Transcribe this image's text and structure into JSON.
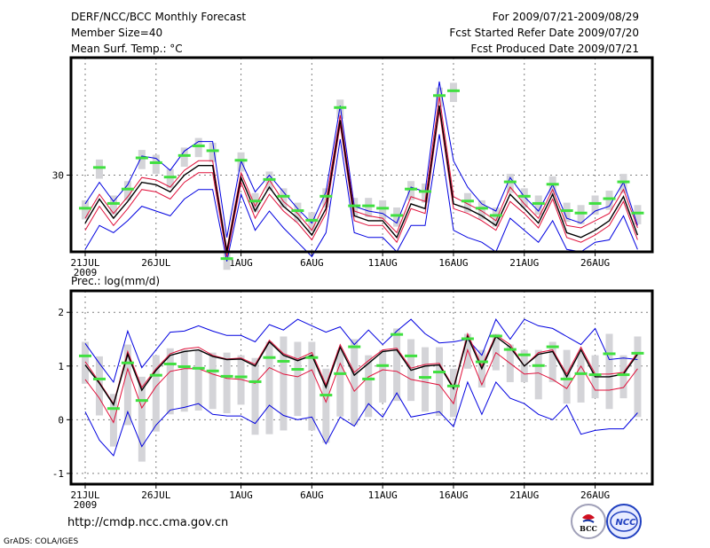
{
  "header": {
    "title": "DERF/NCC/BCC Monthly Forecast",
    "member_size": "Member Size=40",
    "variable_label": "Mean Surf. Temp.: °C",
    "period": "For 2009/07/21-2009/08/29",
    "start_date": "Fcst Started Refer Date 2009/07/20",
    "produced_date": "Fcst Produced Date 2009/07/21"
  },
  "footer": {
    "url": "http://cmdp.ncc.cma.gov.cn",
    "credit": "GrADS: COLA/IGES",
    "logo_left": "BCC",
    "logo_right": "NCC"
  },
  "colors": {
    "mean": "#000000",
    "spread": "#e0103a",
    "extreme": "#0000e0",
    "observed": "#40e040",
    "obs_box": "#d4d4d8",
    "grid": "#808080"
  },
  "chart_data": [
    {
      "type": "line",
      "title": "Mean Surf. Temp.: °C",
      "xlabel": "",
      "ylabel": "°C",
      "x_ticks": [
        "21JUL",
        "26JUL",
        "1AUG",
        "6AUG",
        "11AUG",
        "16AUG",
        "21AUG",
        "26AUG"
      ],
      "x_tick_days": [
        0,
        5,
        11,
        16,
        21,
        26,
        31,
        36
      ],
      "x_year_label": "2009",
      "y_ticks": [
        30
      ],
      "ylim": [
        26.8,
        34.9
      ],
      "grid": true,
      "series": [
        {
          "name": "ensemble max",
          "values": [
            28.8,
            29.7,
            28.9,
            29.6,
            30.8,
            30.7,
            30.2,
            31.0,
            31.4,
            31.4,
            27.4,
            30.6,
            29.3,
            30.0,
            29.3,
            28.6,
            28.0,
            29.3,
            32.9,
            28.7,
            28.5,
            28.4,
            28.0,
            29.5,
            29.3,
            33.9,
            30.6,
            29.5,
            28.8,
            28.5,
            29.9,
            29.1,
            28.5,
            29.6,
            28.2,
            28.0,
            28.5,
            28.7,
            29.7,
            27.9
          ]
        },
        {
          "name": "spread upper",
          "values": [
            28.2,
            29.2,
            28.4,
            29.1,
            29.9,
            29.8,
            29.5,
            30.2,
            30.6,
            30.6,
            26.9,
            30.1,
            28.7,
            29.8,
            28.9,
            28.4,
            27.7,
            28.9,
            32.5,
            28.5,
            28.3,
            28.2,
            27.6,
            29.1,
            28.9,
            33.3,
            29.1,
            28.8,
            28.5,
            28.1,
            29.5,
            28.8,
            28.2,
            29.4,
            27.9,
            27.8,
            28.1,
            28.4,
            29.4,
            27.8
          ]
        },
        {
          "name": "ensemble mean",
          "values": [
            28.0,
            29.0,
            28.2,
            28.9,
            29.7,
            29.6,
            29.3,
            30.0,
            30.4,
            30.4,
            26.8,
            29.9,
            28.5,
            29.5,
            28.7,
            28.2,
            27.5,
            28.6,
            32.3,
            28.3,
            28.1,
            28.1,
            27.4,
            28.8,
            28.6,
            32.9,
            28.8,
            28.6,
            28.3,
            27.9,
            29.2,
            28.6,
            28.0,
            29.2,
            27.6,
            27.4,
            27.7,
            28.1,
            29.1,
            27.5
          ]
        },
        {
          "name": "spread lower",
          "values": [
            27.7,
            28.7,
            27.9,
            28.6,
            29.4,
            29.3,
            29.0,
            29.7,
            30.1,
            30.1,
            26.6,
            29.7,
            28.2,
            29.2,
            28.5,
            28.0,
            27.3,
            28.4,
            32.1,
            28.1,
            27.9,
            27.9,
            27.2,
            28.6,
            28.4,
            32.7,
            28.6,
            28.4,
            28.1,
            27.7,
            28.9,
            28.4,
            27.8,
            29.0,
            27.4,
            27.2,
            27.5,
            27.9,
            28.9,
            27.3
          ]
        },
        {
          "name": "ensemble min",
          "values": [
            26.9,
            27.9,
            27.6,
            28.1,
            28.7,
            28.5,
            28.3,
            29.0,
            29.4,
            29.4,
            26.4,
            29.2,
            27.7,
            28.5,
            27.8,
            27.2,
            26.6,
            27.6,
            31.5,
            27.6,
            27.4,
            27.4,
            26.8,
            27.9,
            27.9,
            31.7,
            27.7,
            27.4,
            27.2,
            26.8,
            28.2,
            27.7,
            27.2,
            28.1,
            26.9,
            26.8,
            27.2,
            27.3,
            28.3,
            26.9
          ]
        },
        {
          "name": "observed",
          "values": [
            28.6,
            30.3,
            28.8,
            29.4,
            30.7,
            30.5,
            29.9,
            30.8,
            31.2,
            31.0,
            26.5,
            30.6,
            28.9,
            29.8,
            29.1,
            28.5,
            28.1,
            29.1,
            32.8,
            28.7,
            28.7,
            28.6,
            28.3,
            29.4,
            29.3,
            33.3,
            33.5,
            28.9,
            28.6,
            28.3,
            29.7,
            29.1,
            28.8,
            29.6,
            28.5,
            28.4,
            28.8,
            29.0,
            29.7,
            28.4
          ]
        }
      ]
    },
    {
      "type": "line",
      "title": "Prec.: log(mm/d)",
      "xlabel": "",
      "ylabel": "log(mm/d)",
      "x_ticks": [
        "21JUL",
        "26JUL",
        "1AUG",
        "6AUG",
        "11AUG",
        "16AUG",
        "21AUG",
        "26AUG"
      ],
      "x_tick_days": [
        0,
        5,
        11,
        16,
        21,
        26,
        31,
        36
      ],
      "x_year_label": "2009",
      "y_ticks": [
        -1,
        0,
        1,
        2
      ],
      "ylim": [
        -1.2,
        2.4
      ],
      "grid": true,
      "series": [
        {
          "name": "ensemble max",
          "values": [
            1.42,
            1.05,
            0.7,
            1.65,
            0.97,
            1.3,
            1.63,
            1.65,
            1.75,
            1.65,
            1.57,
            1.57,
            1.45,
            1.77,
            1.67,
            1.87,
            1.75,
            1.63,
            1.73,
            1.4,
            1.67,
            1.4,
            1.65,
            1.87,
            1.6,
            1.43,
            1.45,
            1.5,
            1.2,
            1.87,
            1.5,
            1.87,
            1.75,
            1.7,
            1.55,
            1.4,
            1.7,
            1.12,
            1.15,
            1.12
          ]
        },
        {
          "name": "spread upper",
          "values": [
            1.08,
            0.7,
            0.3,
            1.27,
            0.6,
            0.95,
            1.23,
            1.32,
            1.35,
            1.2,
            1.13,
            1.15,
            1.03,
            1.48,
            1.23,
            1.13,
            1.25,
            0.65,
            1.4,
            0.88,
            1.1,
            1.3,
            1.33,
            0.96,
            1.03,
            1.05,
            0.6,
            1.6,
            1.0,
            1.58,
            1.4,
            1.0,
            1.25,
            1.3,
            0.85,
            1.35,
            0.85,
            0.85,
            0.88,
            1.25
          ]
        },
        {
          "name": "ensemble mean",
          "values": [
            1.02,
            0.68,
            0.28,
            1.22,
            0.55,
            0.92,
            1.2,
            1.27,
            1.3,
            1.18,
            1.12,
            1.13,
            1.0,
            1.45,
            1.2,
            1.1,
            1.2,
            0.6,
            1.35,
            0.83,
            1.05,
            1.27,
            1.3,
            0.92,
            1.0,
            1.02,
            0.58,
            1.55,
            0.95,
            1.55,
            1.35,
            1.0,
            1.22,
            1.27,
            0.8,
            1.3,
            0.8,
            0.8,
            0.85,
            1.22
          ]
        },
        {
          "name": "spread lower",
          "values": [
            0.75,
            0.4,
            -0.05,
            0.95,
            0.22,
            0.62,
            0.9,
            0.95,
            0.95,
            0.85,
            0.77,
            0.75,
            0.68,
            0.97,
            0.85,
            0.8,
            0.93,
            0.33,
            1.05,
            0.53,
            0.8,
            0.93,
            0.9,
            0.75,
            0.7,
            0.65,
            0.3,
            1.3,
            0.65,
            1.25,
            1.05,
            0.85,
            0.87,
            0.75,
            0.58,
            1.0,
            0.55,
            0.55,
            0.6,
            0.95
          ]
        },
        {
          "name": "ensemble min",
          "values": [
            0.15,
            -0.38,
            -0.67,
            0.15,
            -0.5,
            -0.1,
            0.18,
            0.23,
            0.3,
            0.1,
            0.07,
            0.07,
            -0.07,
            0.27,
            0.08,
            0.0,
            0.05,
            -0.45,
            0.05,
            -0.12,
            0.3,
            0.05,
            0.5,
            0.05,
            0.1,
            0.15,
            -0.13,
            0.7,
            0.1,
            0.7,
            0.4,
            0.3,
            0.1,
            0.0,
            0.27,
            -0.27,
            -0.2,
            -0.17,
            -0.17,
            0.13
          ]
        },
        {
          "name": "observed",
          "values": [
            1.18,
            0.75,
            0.2,
            1.05,
            0.35,
            0.82,
            1.03,
            0.98,
            0.95,
            0.9,
            0.8,
            0.79,
            0.7,
            1.15,
            1.08,
            0.93,
            1.15,
            0.45,
            0.85,
            1.35,
            0.75,
            1.0,
            1.58,
            1.18,
            0.78,
            0.88,
            0.62,
            1.5,
            1.07,
            1.55,
            1.3,
            1.2,
            1.0,
            1.35,
            0.75,
            0.85,
            0.83,
            1.22,
            0.83,
            1.23
          ]
        },
        {
          "name": "obs box upper",
          "values": [
            1.45,
            1.18,
            0.48,
            1.4,
            0.8,
            1.2,
            1.33,
            1.3,
            1.3,
            1.25,
            1.25,
            1.2,
            1.15,
            1.45,
            1.55,
            1.45,
            1.45,
            0.95,
            1.3,
            1.5,
            1.2,
            1.3,
            1.7,
            1.5,
            1.35,
            1.35,
            0.95,
            1.6,
            1.3,
            1.6,
            1.4,
            1.3,
            1.3,
            1.45,
            1.3,
            1.25,
            1.2,
            1.6,
            1.2,
            1.55
          ]
        },
        {
          "name": "obs box lower",
          "values": [
            0.67,
            0.08,
            -0.5,
            -0.1,
            -0.78,
            -0.22,
            0.1,
            0.15,
            0.17,
            0.2,
            0.12,
            0.28,
            -0.28,
            -0.27,
            -0.2,
            0.07,
            -0.2,
            -0.43,
            0.06,
            -0.1,
            0.05,
            0.32,
            0.35,
            0.35,
            0.15,
            0.07,
            0.05,
            0.95,
            0.6,
            0.92,
            0.7,
            0.7,
            0.38,
            0.7,
            0.3,
            0.32,
            0.4,
            0.2,
            0.4,
            0.05
          ]
        }
      ]
    }
  ]
}
